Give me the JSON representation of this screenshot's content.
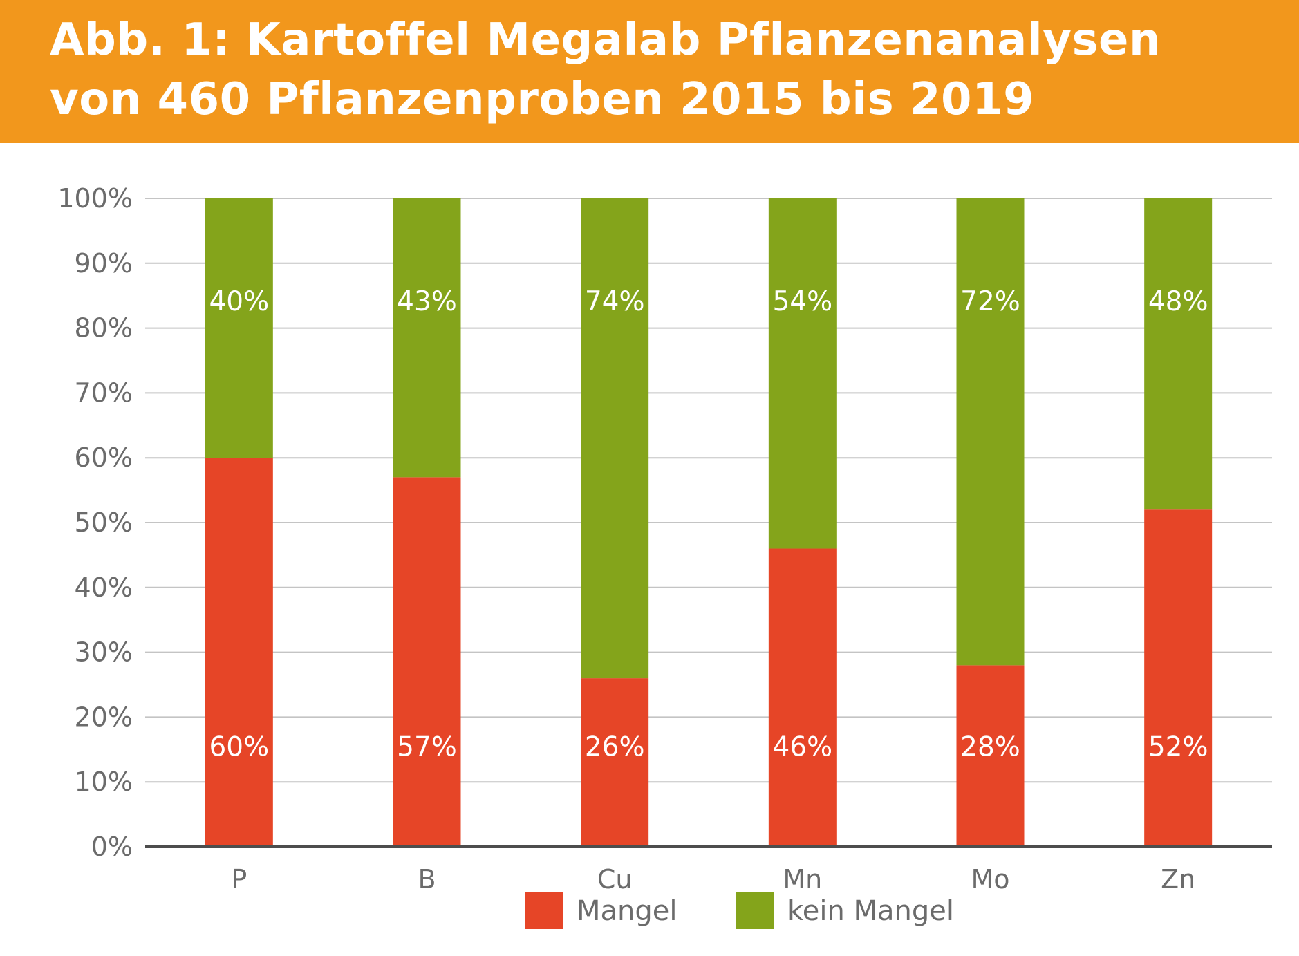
{
  "header": {
    "title_line1": "Abb. 1: Kartoffel Megalab Pflanzenanalysen",
    "title_line2": "von 460 Pflanzenproben 2015 bis 2019",
    "background_color": "#f2971c"
  },
  "chart_data": {
    "type": "bar",
    "stacked": true,
    "title": "Abb. 1: Kartoffel Megalab Pflanzenanalysen von 460 Pflanzenproben 2015 bis 2019",
    "categories": [
      "P",
      "B",
      "Cu",
      "Mn",
      "Mo",
      "Zn"
    ],
    "series": [
      {
        "name": "Mangel",
        "color": "#e64527",
        "values": [
          60,
          57,
          26,
          46,
          28,
          52
        ],
        "labels": [
          "60%",
          "57%",
          "26%",
          "46%",
          "28%",
          "52%"
        ]
      },
      {
        "name": "kein Mangel",
        "color": "#84a41b",
        "values": [
          40,
          43,
          74,
          54,
          72,
          48
        ],
        "labels": [
          "40%",
          "43%",
          "74%",
          "54%",
          "72%",
          "48%"
        ]
      }
    ],
    "ylim": [
      0,
      100
    ],
    "yticks": [
      "0%",
      "10%",
      "20%",
      "30%",
      "40%",
      "50%",
      "60%",
      "70%",
      "80%",
      "90%",
      "100%"
    ],
    "xlabel": "",
    "ylabel": "",
    "grid": true,
    "legend_position": "bottom-center"
  }
}
